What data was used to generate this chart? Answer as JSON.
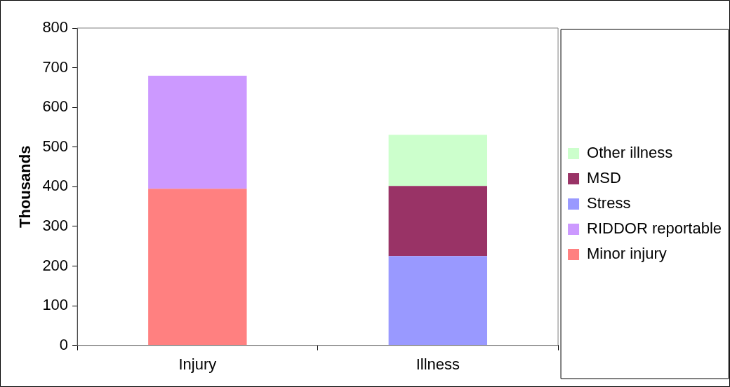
{
  "chart_data": {
    "type": "bar",
    "stacked": true,
    "ylabel": "Thousands",
    "categories": [
      "Injury",
      "Illness"
    ],
    "ylim": [
      0,
      800
    ],
    "yticks": [
      0,
      100,
      200,
      300,
      400,
      500,
      600,
      700,
      800
    ],
    "grid": false,
    "legend": "right",
    "series": [
      {
        "name": "Minor injury",
        "color": "#ff8080",
        "values": [
          395,
          null
        ]
      },
      {
        "name": "RIDDOR reportable",
        "color": "#cc99ff",
        "values": [
          285,
          null
        ]
      },
      {
        "name": "Stress",
        "color": "#9999ff",
        "values": [
          null,
          225
        ]
      },
      {
        "name": "MSD",
        "color": "#993366",
        "values": [
          null,
          177
        ]
      },
      {
        "name": "Other illness",
        "color": "#ccffcc",
        "values": [
          null,
          129
        ]
      }
    ]
  }
}
